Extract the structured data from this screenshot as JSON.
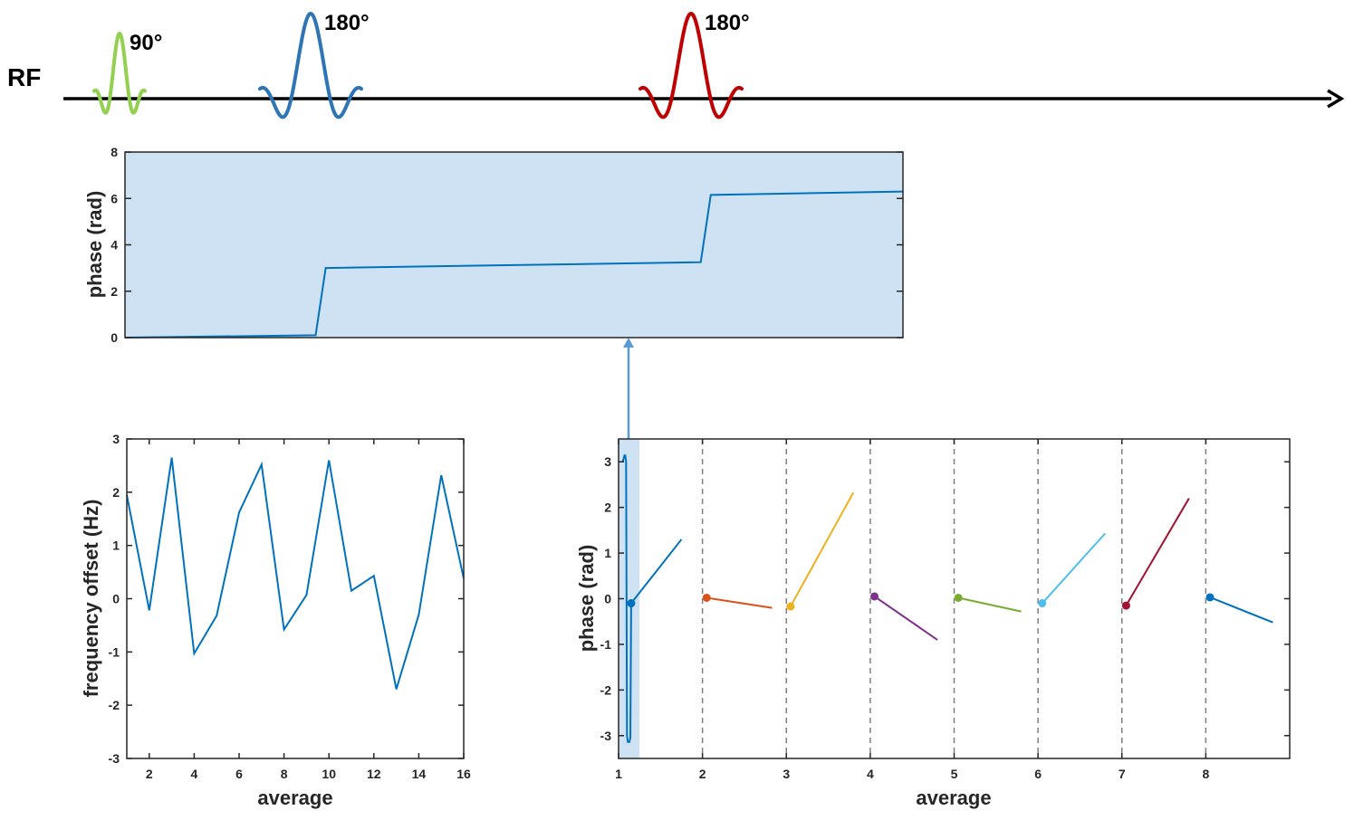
{
  "rf_diagram": {
    "label": "RF",
    "pulses": [
      {
        "label": "90°",
        "color": "#92d050"
      },
      {
        "label": "180°",
        "color": "#2e75b6"
      },
      {
        "label": "180°",
        "color": "#c00000"
      }
    ]
  },
  "colors": {
    "axis": "#262626",
    "line": "#0072bd",
    "shade": "#cfe2f3",
    "arrow": "#5b9bd5",
    "dashed": "#7f7f7f",
    "segments": [
      "#0072bd",
      "#d95319",
      "#edb120",
      "#7e2f8e",
      "#77ac30",
      "#4dbeee",
      "#a2142f",
      "#0072bd"
    ]
  },
  "chart_data": [
    {
      "type": "line",
      "name": "phase-evolution",
      "title": "",
      "xlabel": "",
      "ylabel": "phase (rad)",
      "ylim": [
        0,
        8
      ],
      "yticks": [
        "0",
        "2",
        "4",
        "6",
        "8"
      ],
      "xlim": [
        0,
        1
      ],
      "x": [
        0,
        0.245,
        0.258,
        0.74,
        0.753,
        1.0
      ],
      "values": [
        0,
        0.1,
        3.0,
        3.25,
        6.15,
        6.3
      ]
    },
    {
      "type": "line",
      "name": "frequency-offset",
      "title": "",
      "xlabel": "average",
      "ylabel": "frequency offset (Hz)",
      "xlim": [
        1,
        16
      ],
      "ylim": [
        -3,
        3
      ],
      "xticks": [
        "2",
        "4",
        "6",
        "8",
        "10",
        "12",
        "14",
        "16"
      ],
      "yticks": [
        "-3",
        "-2",
        "-1",
        "0",
        "1",
        "2",
        "3"
      ],
      "x": [
        1,
        2,
        3,
        4,
        5,
        6,
        7,
        8,
        9,
        10,
        11,
        12,
        13,
        14,
        15,
        16
      ],
      "values": [
        1.95,
        -0.22,
        2.65,
        -1.03,
        -0.32,
        1.62,
        2.52,
        -0.58,
        0.07,
        2.6,
        0.15,
        0.43,
        -1.7,
        -0.3,
        2.32,
        0.38
      ]
    },
    {
      "type": "line",
      "name": "phase-per-average",
      "title": "",
      "xlabel": "average",
      "ylabel": "phase (rad)",
      "xlim": [
        1,
        9
      ],
      "ylim": [
        -3.5,
        3.5
      ],
      "xticks": [
        "1",
        "2",
        "3",
        "4",
        "5",
        "6",
        "7",
        "8"
      ],
      "yticks": [
        "-3",
        "-2",
        "-1",
        "0",
        "1",
        "2",
        "3"
      ],
      "highlight_x": [
        1,
        1.25
      ],
      "wrap_trace": {
        "x": [
          1.05,
          1.07,
          1.08,
          1.09,
          1.1,
          1.11,
          1.13,
          1.14,
          1.15
        ],
        "values": [
          3.0,
          3.14,
          3.14,
          3.0,
          -3.0,
          -3.14,
          -3.14,
          -3.05,
          -0.1
        ]
      },
      "series": [
        {
          "name": "average 1",
          "x": [
            1.15,
            1.75
          ],
          "values": [
            -0.1,
            1.3
          ]
        },
        {
          "name": "average 2",
          "x": [
            2.05,
            2.83
          ],
          "values": [
            0.02,
            -0.2
          ]
        },
        {
          "name": "average 3",
          "x": [
            3.05,
            3.8
          ],
          "values": [
            -0.17,
            2.33
          ]
        },
        {
          "name": "average 4",
          "x": [
            4.05,
            4.8
          ],
          "values": [
            0.05,
            -0.9
          ]
        },
        {
          "name": "average 5",
          "x": [
            5.05,
            5.8
          ],
          "values": [
            0.02,
            -0.28
          ]
        },
        {
          "name": "average 6",
          "x": [
            6.05,
            6.8
          ],
          "values": [
            -0.1,
            1.43
          ]
        },
        {
          "name": "average 7",
          "x": [
            7.05,
            7.8
          ],
          "values": [
            -0.15,
            2.2
          ]
        },
        {
          "name": "average 8",
          "x": [
            8.05,
            8.8
          ],
          "values": [
            0.03,
            -0.52
          ]
        }
      ]
    }
  ]
}
